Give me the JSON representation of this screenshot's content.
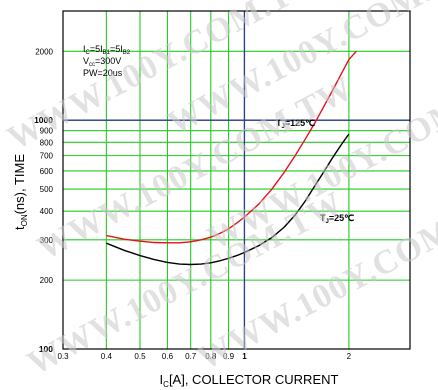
{
  "chart_data": {
    "type": "line",
    "xlabel": {
      "main": "I",
      "sub": "C",
      "rest": "[A], COLLECTOR CURRENT"
    },
    "ylabel": {
      "main": "t",
      "sub": "ON",
      "rest": "(ns), TIME"
    },
    "xscale": "log",
    "yscale": "log",
    "xlim": [
      0.3,
      3
    ],
    "ylim": [
      100,
      3000
    ],
    "xticks": [
      0.3,
      0.4,
      0.5,
      0.6,
      0.7,
      0.8,
      0.9,
      1,
      2
    ],
    "xtick_labels": [
      "0.3",
      "0.4",
      "0.5",
      "0.6",
      "0.7",
      "0.8",
      "0.9",
      "1",
      "2"
    ],
    "yticks": [
      100,
      200,
      300,
      400,
      500,
      600,
      700,
      800,
      900,
      1000,
      2000
    ],
    "ytick_labels": [
      "100",
      "200",
      "300",
      "400",
      "500",
      "600",
      "700",
      "800",
      "900",
      "1000",
      "2000"
    ],
    "grid": true,
    "reference_lines": {
      "x": 1,
      "y": 1000,
      "color": "#2b3d8c"
    },
    "conditions": [
      {
        "main": "I",
        "sub": "C",
        "rest": "=5I",
        "sub2": "B1",
        "rest2": "=5I",
        "sub3": "B2"
      },
      {
        "main": "V",
        "sub": "cc",
        "rest": "=300V"
      },
      {
        "main": "PW=20us"
      }
    ],
    "series": [
      {
        "name": "T",
        "name_sub": "J",
        "name_rest": "=125℃",
        "color": "#e8101a",
        "x": [
          0.4,
          0.45,
          0.5,
          0.55,
          0.6,
          0.65,
          0.7,
          0.75,
          0.8,
          0.85,
          0.9,
          0.95,
          1.0,
          1.1,
          1.2,
          1.3,
          1.4,
          1.5,
          1.6,
          1.7,
          1.8,
          1.9,
          2.0,
          2.1
        ],
        "values": [
          313,
          302,
          296,
          292,
          291,
          291,
          294,
          300,
          308,
          320,
          335,
          355,
          377,
          430,
          500,
          590,
          700,
          830,
          980,
          1160,
          1360,
          1590,
          1840,
          2000
        ]
      },
      {
        "name": "T",
        "name_sub": "J",
        "name_rest": "=25℃",
        "color": "#000000",
        "x": [
          0.4,
          0.45,
          0.5,
          0.55,
          0.6,
          0.65,
          0.7,
          0.75,
          0.8,
          0.85,
          0.9,
          0.95,
          1.0,
          1.1,
          1.2,
          1.3,
          1.4,
          1.5,
          1.6,
          1.7,
          1.8,
          1.9,
          2.0
        ],
        "values": [
          290,
          270,
          256,
          246,
          239,
          235,
          234,
          235,
          238,
          243,
          249,
          256,
          264,
          283,
          307,
          340,
          385,
          445,
          520,
          600,
          690,
          780,
          870
        ]
      }
    ]
  },
  "watermark": "WWW.100Y.COM.TW"
}
